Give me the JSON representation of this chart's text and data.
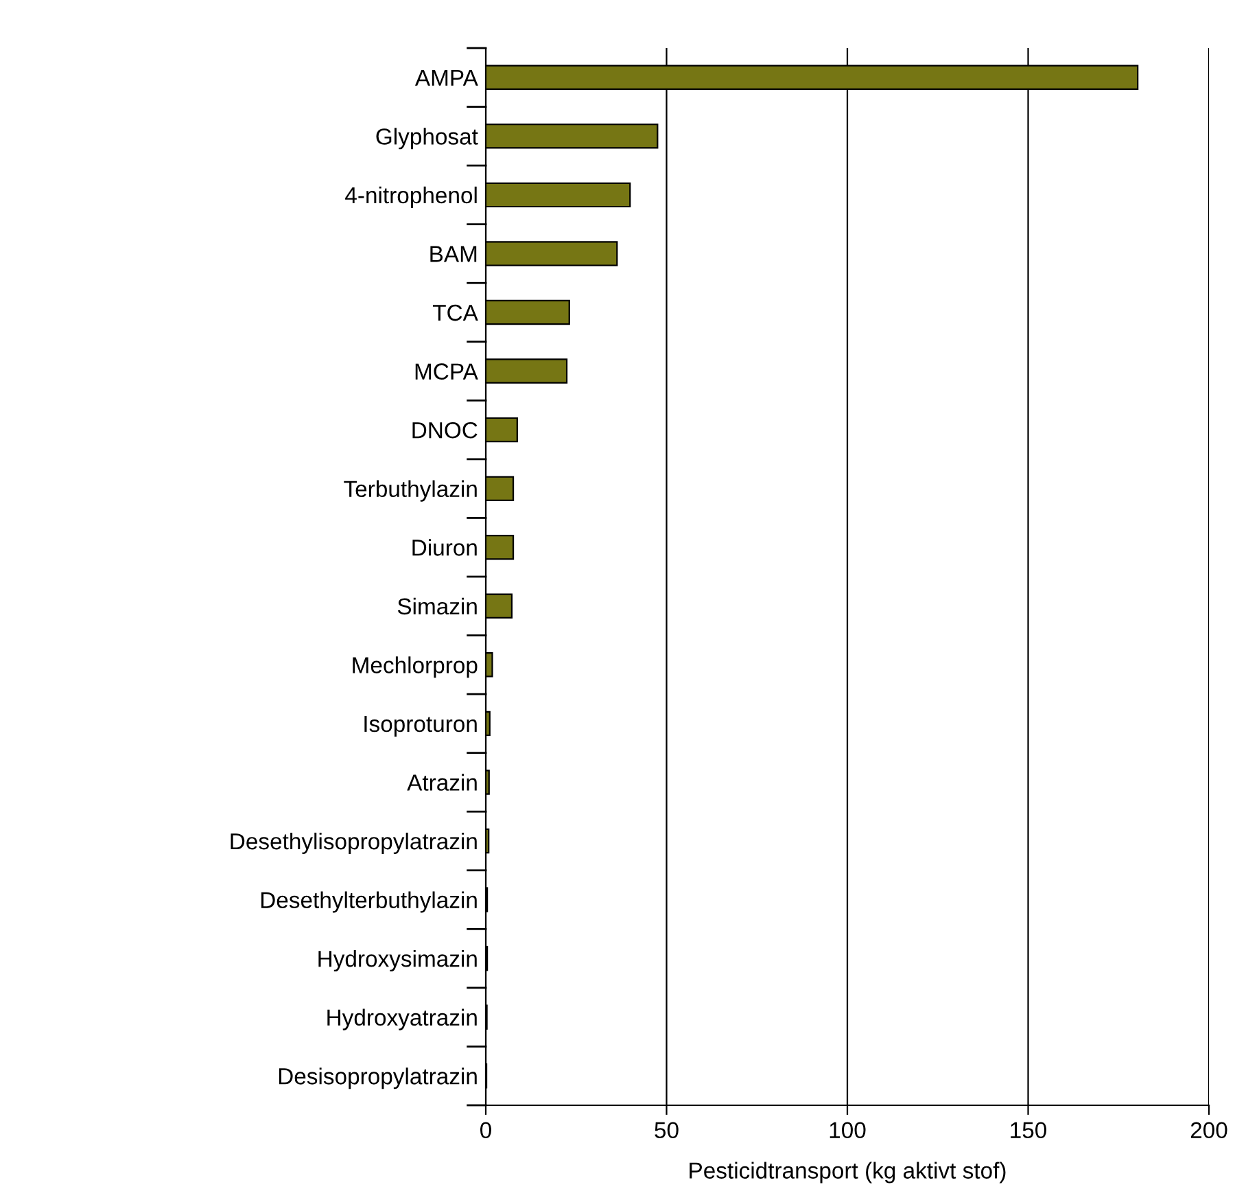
{
  "chart_data": {
    "type": "bar",
    "orientation": "horizontal",
    "xlabel": "Pesticidtransport (kg aktivt stof)",
    "categories": [
      "AMPA",
      "Glyphosat",
      "4-nitrophenol",
      "BAM",
      "TCA",
      "MCPA",
      "DNOC",
      "Terbuthylazin",
      "Diuron",
      "Simazin",
      "Mechlorprop",
      "Isoproturon",
      "Atrazin",
      "Desethylisopropylatrazin",
      "Desethylterbuthylazin",
      "Hydroxysimazin",
      "Hydroxyatrazin",
      "Desisopropylatrazin"
    ],
    "values": [
      180.3,
      47.5,
      39.9,
      36.3,
      23.1,
      22.4,
      8.7,
      7.6,
      7.6,
      7.2,
      1.8,
      1.1,
      0.9,
      0.8,
      0.4,
      0.4,
      0.3,
      0.2
    ],
    "color": "#767614",
    "xlim": [
      0,
      200
    ],
    "xticks": [
      0,
      50,
      100,
      150,
      200
    ],
    "grid": "x"
  }
}
